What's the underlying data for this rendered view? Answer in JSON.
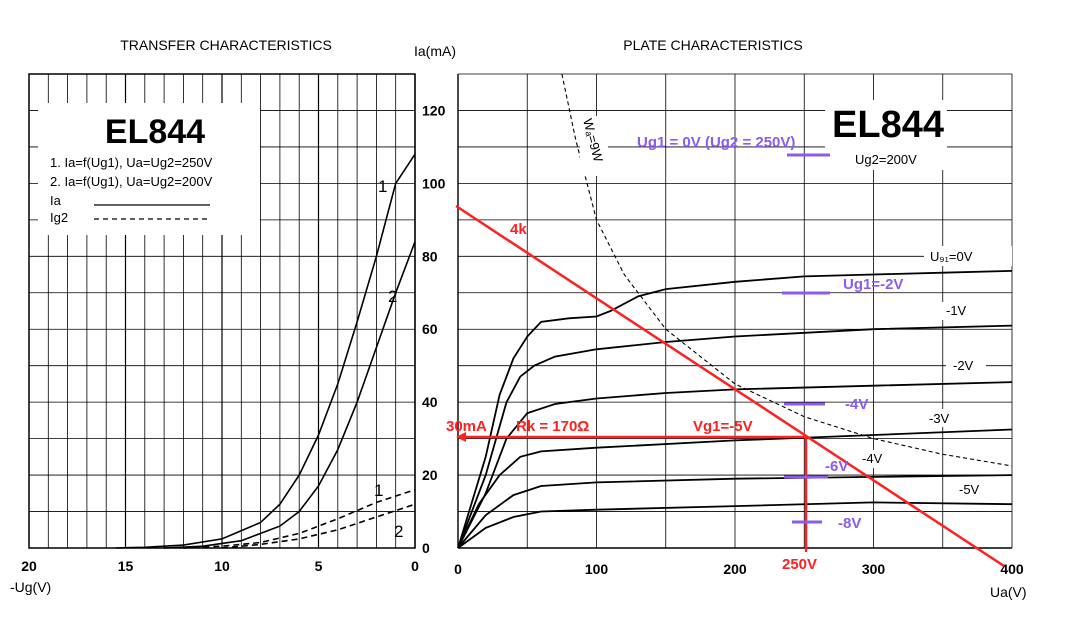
{
  "transfer": {
    "title": "TRANSFER  CHARACTERISTICS",
    "xlabel": "-Ug(V)",
    "tube": "EL844",
    "legend": [
      "1. Ia=f(Ug1), Ua=Ug2=250V",
      "2. Ia=f(Ug1), Ua=Ug2=200V"
    ],
    "legend_ia": "Ia",
    "legend_ig2": "Ig2",
    "curve_labels": [
      "1",
      "2",
      "1",
      "2"
    ]
  },
  "plate": {
    "title": "PLATE CHARACTERISTICS",
    "ylabel": "Ia(mA)",
    "xlabel": "Ua(V)",
    "tube": "EL844",
    "ug2_label": "Ug2=200V",
    "wa_label": "Wₐ=9W",
    "curve_labels": [
      "U₉₁=0V",
      "-1V",
      "-2V",
      "-3V",
      "-4V",
      "-5V"
    ]
  },
  "annotations": {
    "ug1_0_ug2_250": "Ug1 = 0V (Ug2 = 250V)",
    "ug1_m2": "Ug1=-2V",
    "m4": "-4V",
    "m6": "-6V",
    "m8": "-8V",
    "load": "4k",
    "current": "30mA",
    "rk": "Rk = 170Ω",
    "vg1": "Vg1=-5V",
    "voltage": "250V"
  },
  "colors": {
    "red": "#ff2020",
    "purple": "#8a5cf0",
    "black": "#000000"
  },
  "chart_data": [
    {
      "type": "line",
      "title": "TRANSFER  CHARACTERISTICS",
      "xlabel": "-Ug(V)",
      "ylabel": "Ia(mA)",
      "xlim": [
        20,
        0
      ],
      "ylim": [
        0,
        130
      ],
      "x_ticks": [
        20,
        15,
        10,
        5,
        0
      ],
      "x_tick_labels": [
        "20",
        "15",
        "10",
        "5",
        "0"
      ],
      "series": [
        {
          "name": "Ia 1 (Ua=Ug2=250V)",
          "style": "solid",
          "x": [
            15.5,
            14,
            12,
            10,
            8,
            7,
            6,
            5,
            4,
            3,
            2,
            1,
            0
          ],
          "y": [
            0,
            0.2,
            0.8,
            2.5,
            7,
            12,
            20,
            31,
            45,
            62,
            80,
            100,
            108
          ]
        },
        {
          "name": "Ia 2 (Ua=Ug2=200V)",
          "style": "solid",
          "x": [
            13,
            11,
            9,
            7,
            6,
            5,
            4,
            3,
            2,
            1,
            0
          ],
          "y": [
            0,
            0.5,
            2,
            6,
            10,
            17,
            27,
            40,
            55,
            70,
            84
          ]
        },
        {
          "name": "Ig2 1",
          "style": "dashed",
          "x": [
            12,
            10,
            8,
            6,
            4,
            2,
            0
          ],
          "y": [
            0,
            0.5,
            1.5,
            4,
            8,
            12.5,
            16
          ]
        },
        {
          "name": "Ig2 2",
          "style": "dashed",
          "x": [
            10,
            8,
            6,
            4,
            2,
            0
          ],
          "y": [
            0,
            1,
            2.5,
            5,
            8.5,
            12
          ]
        }
      ]
    },
    {
      "type": "line",
      "title": "PLATE CHARACTERISTICS",
      "xlabel": "Ua(V)",
      "ylabel": "Ia(mA)",
      "xlim": [
        0,
        400
      ],
      "ylim": [
        0,
        130
      ],
      "x_ticks": [
        0,
        100,
        200,
        300,
        400
      ],
      "y_ticks": [
        0,
        20,
        40,
        60,
        80,
        100,
        120
      ],
      "series": [
        {
          "name": "Ug1=0V",
          "style": "solid",
          "x": [
            0,
            20,
            30,
            40,
            50,
            60,
            80,
            100,
            110,
            130,
            150,
            200,
            250,
            300,
            350,
            400
          ],
          "y": [
            0,
            25,
            42,
            52,
            58,
            62,
            63,
            63.5,
            65,
            69,
            71,
            73,
            74.5,
            75,
            75.5,
            76
          ]
        },
        {
          "name": "-1V",
          "style": "solid",
          "x": [
            0,
            20,
            35,
            45,
            55,
            70,
            100,
            150,
            200,
            300,
            400
          ],
          "y": [
            0,
            20,
            40,
            47,
            50,
            52.5,
            54.5,
            56.5,
            58,
            60,
            61
          ]
        },
        {
          "name": "-2V",
          "style": "solid",
          "x": [
            0,
            20,
            35,
            50,
            70,
            100,
            150,
            200,
            300,
            400
          ],
          "y": [
            0,
            15,
            30,
            37,
            39.5,
            41,
            42.5,
            43.5,
            44.5,
            45.5
          ]
        },
        {
          "name": "-3V",
          "style": "solid",
          "x": [
            0,
            15,
            30,
            45,
            60,
            100,
            200,
            300,
            400
          ],
          "y": [
            0,
            12,
            20,
            25,
            26.5,
            27.5,
            29.5,
            31,
            32.5
          ]
        },
        {
          "name": "-4V",
          "style": "solid",
          "x": [
            0,
            20,
            40,
            60,
            100,
            200,
            300,
            400
          ],
          "y": [
            0,
            9,
            14.5,
            17,
            18,
            19,
            19.5,
            20
          ]
        },
        {
          "name": "-5V",
          "style": "solid",
          "x": [
            0,
            20,
            40,
            60,
            100,
            200,
            300,
            400
          ],
          "y": [
            0,
            5.5,
            8.5,
            10,
            10.5,
            11.5,
            12.5,
            12
          ]
        },
        {
          "name": "Wa=9W",
          "style": "dashed",
          "x": [
            75,
            85,
            100,
            120,
            150,
            200,
            250,
            300,
            350,
            400
          ],
          "y": [
            130,
            112,
            90,
            75,
            60,
            45,
            36,
            30,
            25.7,
            22.5
          ]
        },
        {
          "name": "Load line 4k",
          "style": "red",
          "x": [
            0,
            400
          ],
          "y": [
            94,
            0
          ]
        }
      ],
      "markers": [
        {
          "label": "Ug1 = 0V (Ug2 = 250V)",
          "x": 250,
          "y": 108
        },
        {
          "label": "Ug1=-2V",
          "x": 245,
          "y": 70
        },
        {
          "label": "-4V",
          "x": 245,
          "y": 40
        },
        {
          "label": "-6V",
          "x": 250,
          "y": 20
        },
        {
          "label": "-8V",
          "x": 250,
          "y": 7
        }
      ],
      "operating_point": {
        "x": 250,
        "y": 31
      }
    }
  ]
}
